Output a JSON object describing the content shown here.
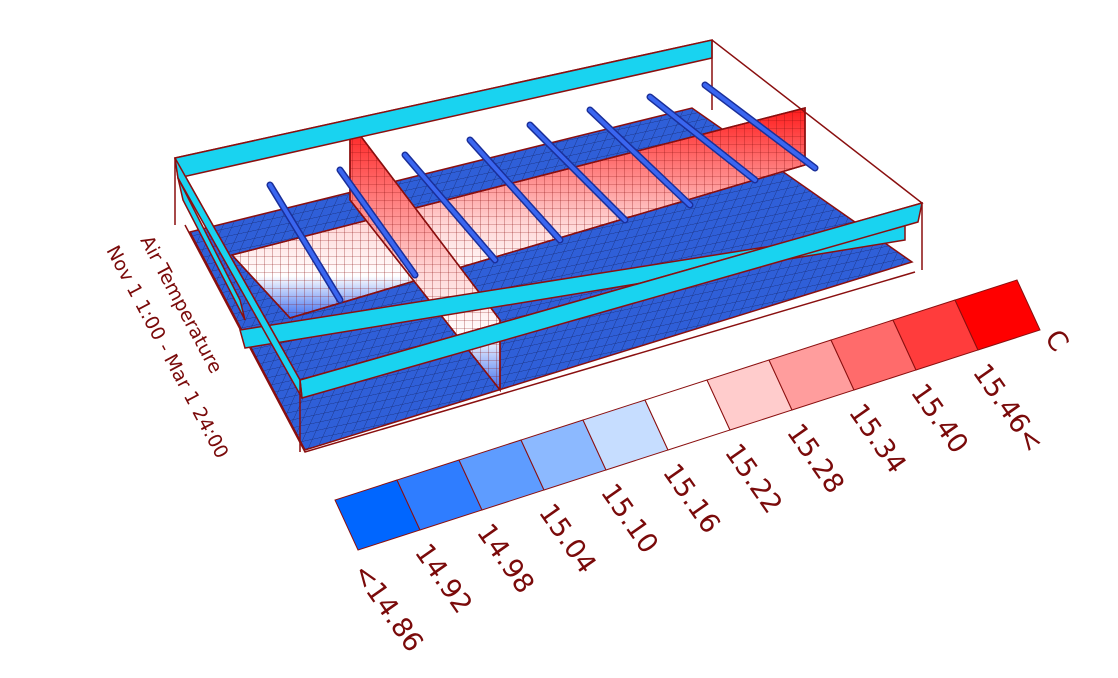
{
  "title": {
    "lines": [
      "Air Temperature",
      "Nov 1 1:00 - Mar 1 24:00"
    ]
  },
  "legend": {
    "unit": "C",
    "labels": [
      "<14.86",
      "14.92",
      "14.98",
      "15.04",
      "15.10",
      "15.16",
      "15.22",
      "15.28",
      "15.34",
      "15.40",
      "15.46<"
    ],
    "colors": [
      "#0066ff",
      "#2f7dff",
      "#5e9cff",
      "#8cb9ff",
      "#c6ddff",
      "#ffffff",
      "#ffcccc",
      "#ff9d9d",
      "#ff6b6b",
      "#ff3c3c",
      "#ff0000"
    ]
  }
}
